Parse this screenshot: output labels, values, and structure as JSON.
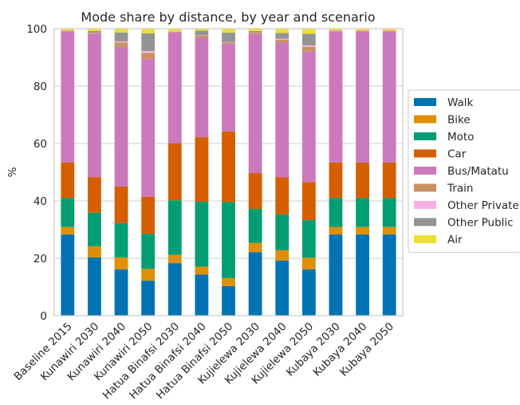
{
  "chart_data": {
    "type": "bar",
    "stacked": true,
    "title": "Mode share by distance, by year and scenario",
    "xlabel": "",
    "ylabel": "%",
    "ylim": [
      0,
      100
    ],
    "yticks": [
      0,
      20,
      40,
      60,
      80,
      100
    ],
    "grid": true,
    "legend_position": "right",
    "categories": [
      "Baseline 2015",
      "Kunawiri 2030",
      "Kunawiri 2040",
      "Kunawiri 2050",
      "Hatua Binafsi 2030",
      "Hatua Binafsi 2040",
      "Hatua Binafsi 2050",
      "Kujielewa 2030",
      "Kujielewa 2040",
      "Kujielewa 2050",
      "Kubaya 2030",
      "Kubaya 2040",
      "Kubaya 2050"
    ],
    "series": [
      {
        "name": "Walk",
        "color": "#0173b2",
        "values": [
          28.3,
          20.3,
          16.1,
          12.2,
          18.3,
          14.3,
          10.3,
          22.1,
          19.2,
          16.1,
          28.3,
          28.3,
          28.3
        ]
      },
      {
        "name": "Bike",
        "color": "#de8f05",
        "values": [
          2.6,
          3.9,
          4.2,
          4.1,
          2.9,
          2.8,
          2.8,
          3.3,
          3.6,
          4.1,
          2.6,
          2.6,
          2.6
        ]
      },
      {
        "name": "Moto",
        "color": "#029e73",
        "values": [
          10.1,
          11.7,
          12.0,
          12.2,
          19.0,
          22.6,
          26.5,
          11.8,
          12.5,
          13.1,
          10.1,
          10.1,
          10.1
        ]
      },
      {
        "name": "Car",
        "color": "#d55e00",
        "values": [
          12.4,
          12.4,
          12.7,
          12.9,
          19.8,
          22.5,
          24.6,
          12.5,
          12.9,
          13.3,
          12.4,
          12.4,
          12.4
        ]
      },
      {
        "name": "Bus/Matatu",
        "color": "#cc78bc",
        "values": [
          45.7,
          49.9,
          48.6,
          48.0,
          38.7,
          34.6,
          30.5,
          48.4,
          46.9,
          45.4,
          45.7,
          45.7,
          45.7
        ]
      },
      {
        "name": "Train",
        "color": "#ca9161",
        "values": [
          0.2,
          0.3,
          1.6,
          2.2,
          0.3,
          0.8,
          0.5,
          0.5,
          1.0,
          1.7,
          0.2,
          0.2,
          0.2
        ]
      },
      {
        "name": "Other Private",
        "color": "#fbafe4",
        "values": [
          0.1,
          0.1,
          0.4,
          0.6,
          0.1,
          0.1,
          0.1,
          0.1,
          0.4,
          0.5,
          0.1,
          0.1,
          0.1
        ]
      },
      {
        "name": "Other Public",
        "color": "#949494",
        "values": [
          0.0,
          0.6,
          3.1,
          6.2,
          0.0,
          1.6,
          3.3,
          0.5,
          2.0,
          4.0,
          0.0,
          0.0,
          0.0
        ]
      },
      {
        "name": "Air",
        "color": "#ece133",
        "values": [
          0.6,
          0.8,
          1.3,
          1.6,
          0.9,
          0.7,
          1.4,
          0.8,
          1.5,
          1.8,
          0.6,
          0.6,
          0.6
        ]
      }
    ]
  }
}
